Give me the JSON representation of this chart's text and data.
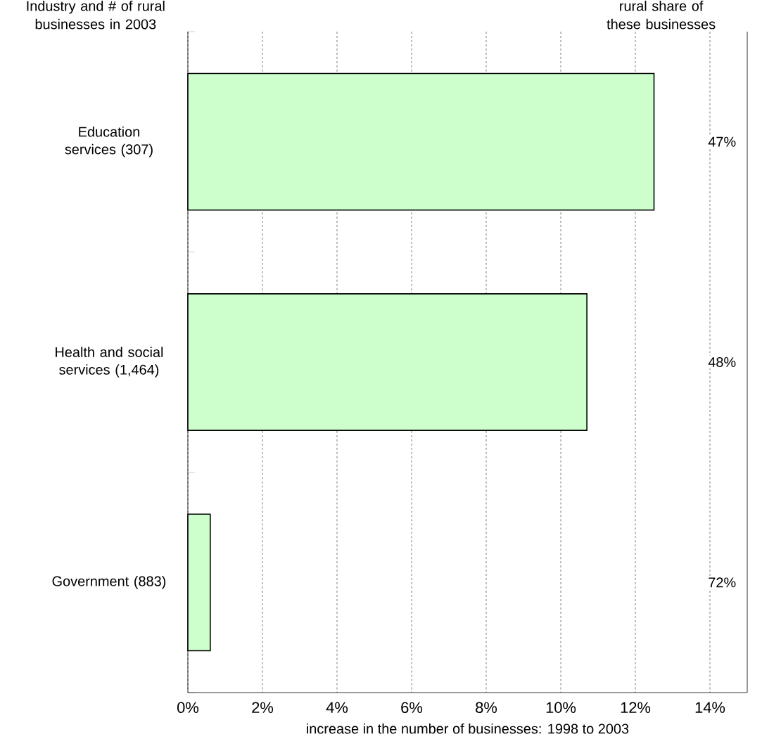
{
  "chart_data": {
    "type": "bar",
    "orientation": "horizontal",
    "ylabel": "Industry and # of rural businesses in 2003",
    "xlabel": "increase in the number of businesses: 1998 to 2003",
    "categories": [
      "Education services (307)",
      "Health and social services (1,464)",
      "Government (883)"
    ],
    "values": [
      12.5,
      10.7,
      0.6
    ],
    "color": "#ccffcc",
    "grid": "x",
    "xlim": [
      0,
      15
    ],
    "xticks": [
      {
        "value": 0,
        "label": "0%"
      },
      {
        "value": 2,
        "label": "2%"
      },
      {
        "value": 4,
        "label": "4%"
      },
      {
        "value": 6,
        "label": "6%"
      },
      {
        "value": 8,
        "label": "8%"
      },
      {
        "value": 10,
        "label": "10%"
      },
      {
        "value": 12,
        "label": "12%"
      },
      {
        "value": 14,
        "label": "14%"
      }
    ],
    "annotations": [
      "rural share of these businesses",
      {
        "text": "47%",
        "y": "Education services (307)"
      },
      {
        "text": "48%",
        "y": "Health and social services (1,464)"
      },
      {
        "text": "72%",
        "y": "Government (883)"
      }
    ]
  }
}
